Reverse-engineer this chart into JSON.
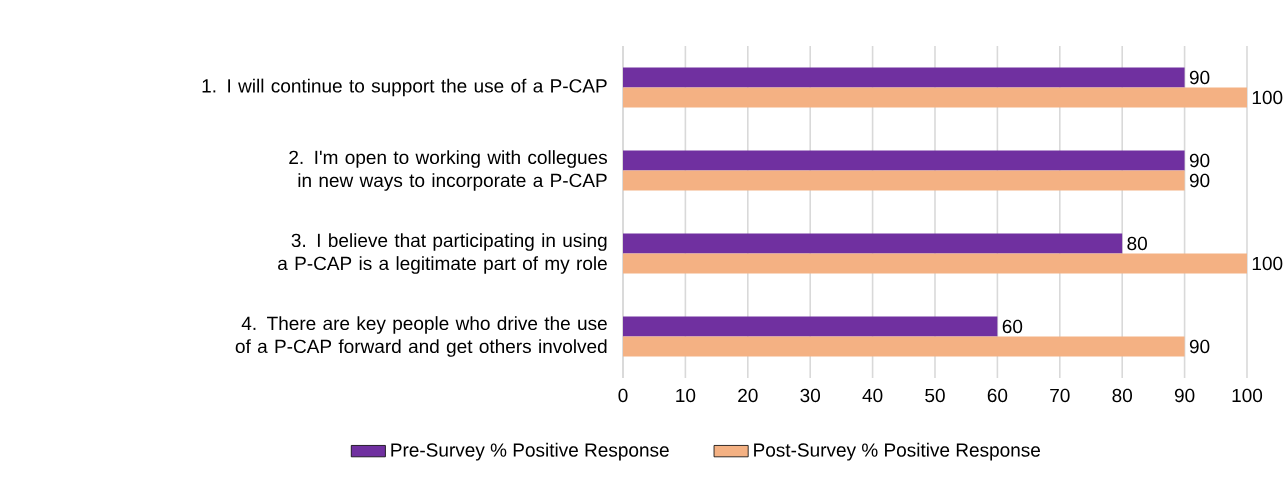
{
  "chart_data": {
    "type": "bar",
    "orientation": "horizontal",
    "categories": [
      "1. I will continue to support the use of a P-CAP",
      "2. I'm open to working with collegues in new ways to incorporate a P-CAP",
      "3. I believe that participating in using a P-CAP is a legitimate part of my role",
      "4. There are key people who drive the use of a P-CAP forward and get others involved"
    ],
    "series": [
      {
        "name": "Pre-Survey % Positive Response",
        "color": "#7030a0",
        "values": [
          90,
          90,
          80,
          60
        ]
      },
      {
        "name": "Post-Survey % Positive Response",
        "color": "#f4b183",
        "values": [
          100,
          90,
          100,
          90
        ]
      }
    ],
    "xlim": [
      0,
      100
    ],
    "xticks": [
      0,
      10,
      20,
      30,
      40,
      50,
      60,
      70,
      80,
      90,
      100
    ],
    "grid": "x",
    "legend": "bottom",
    "data_labels": true
  }
}
